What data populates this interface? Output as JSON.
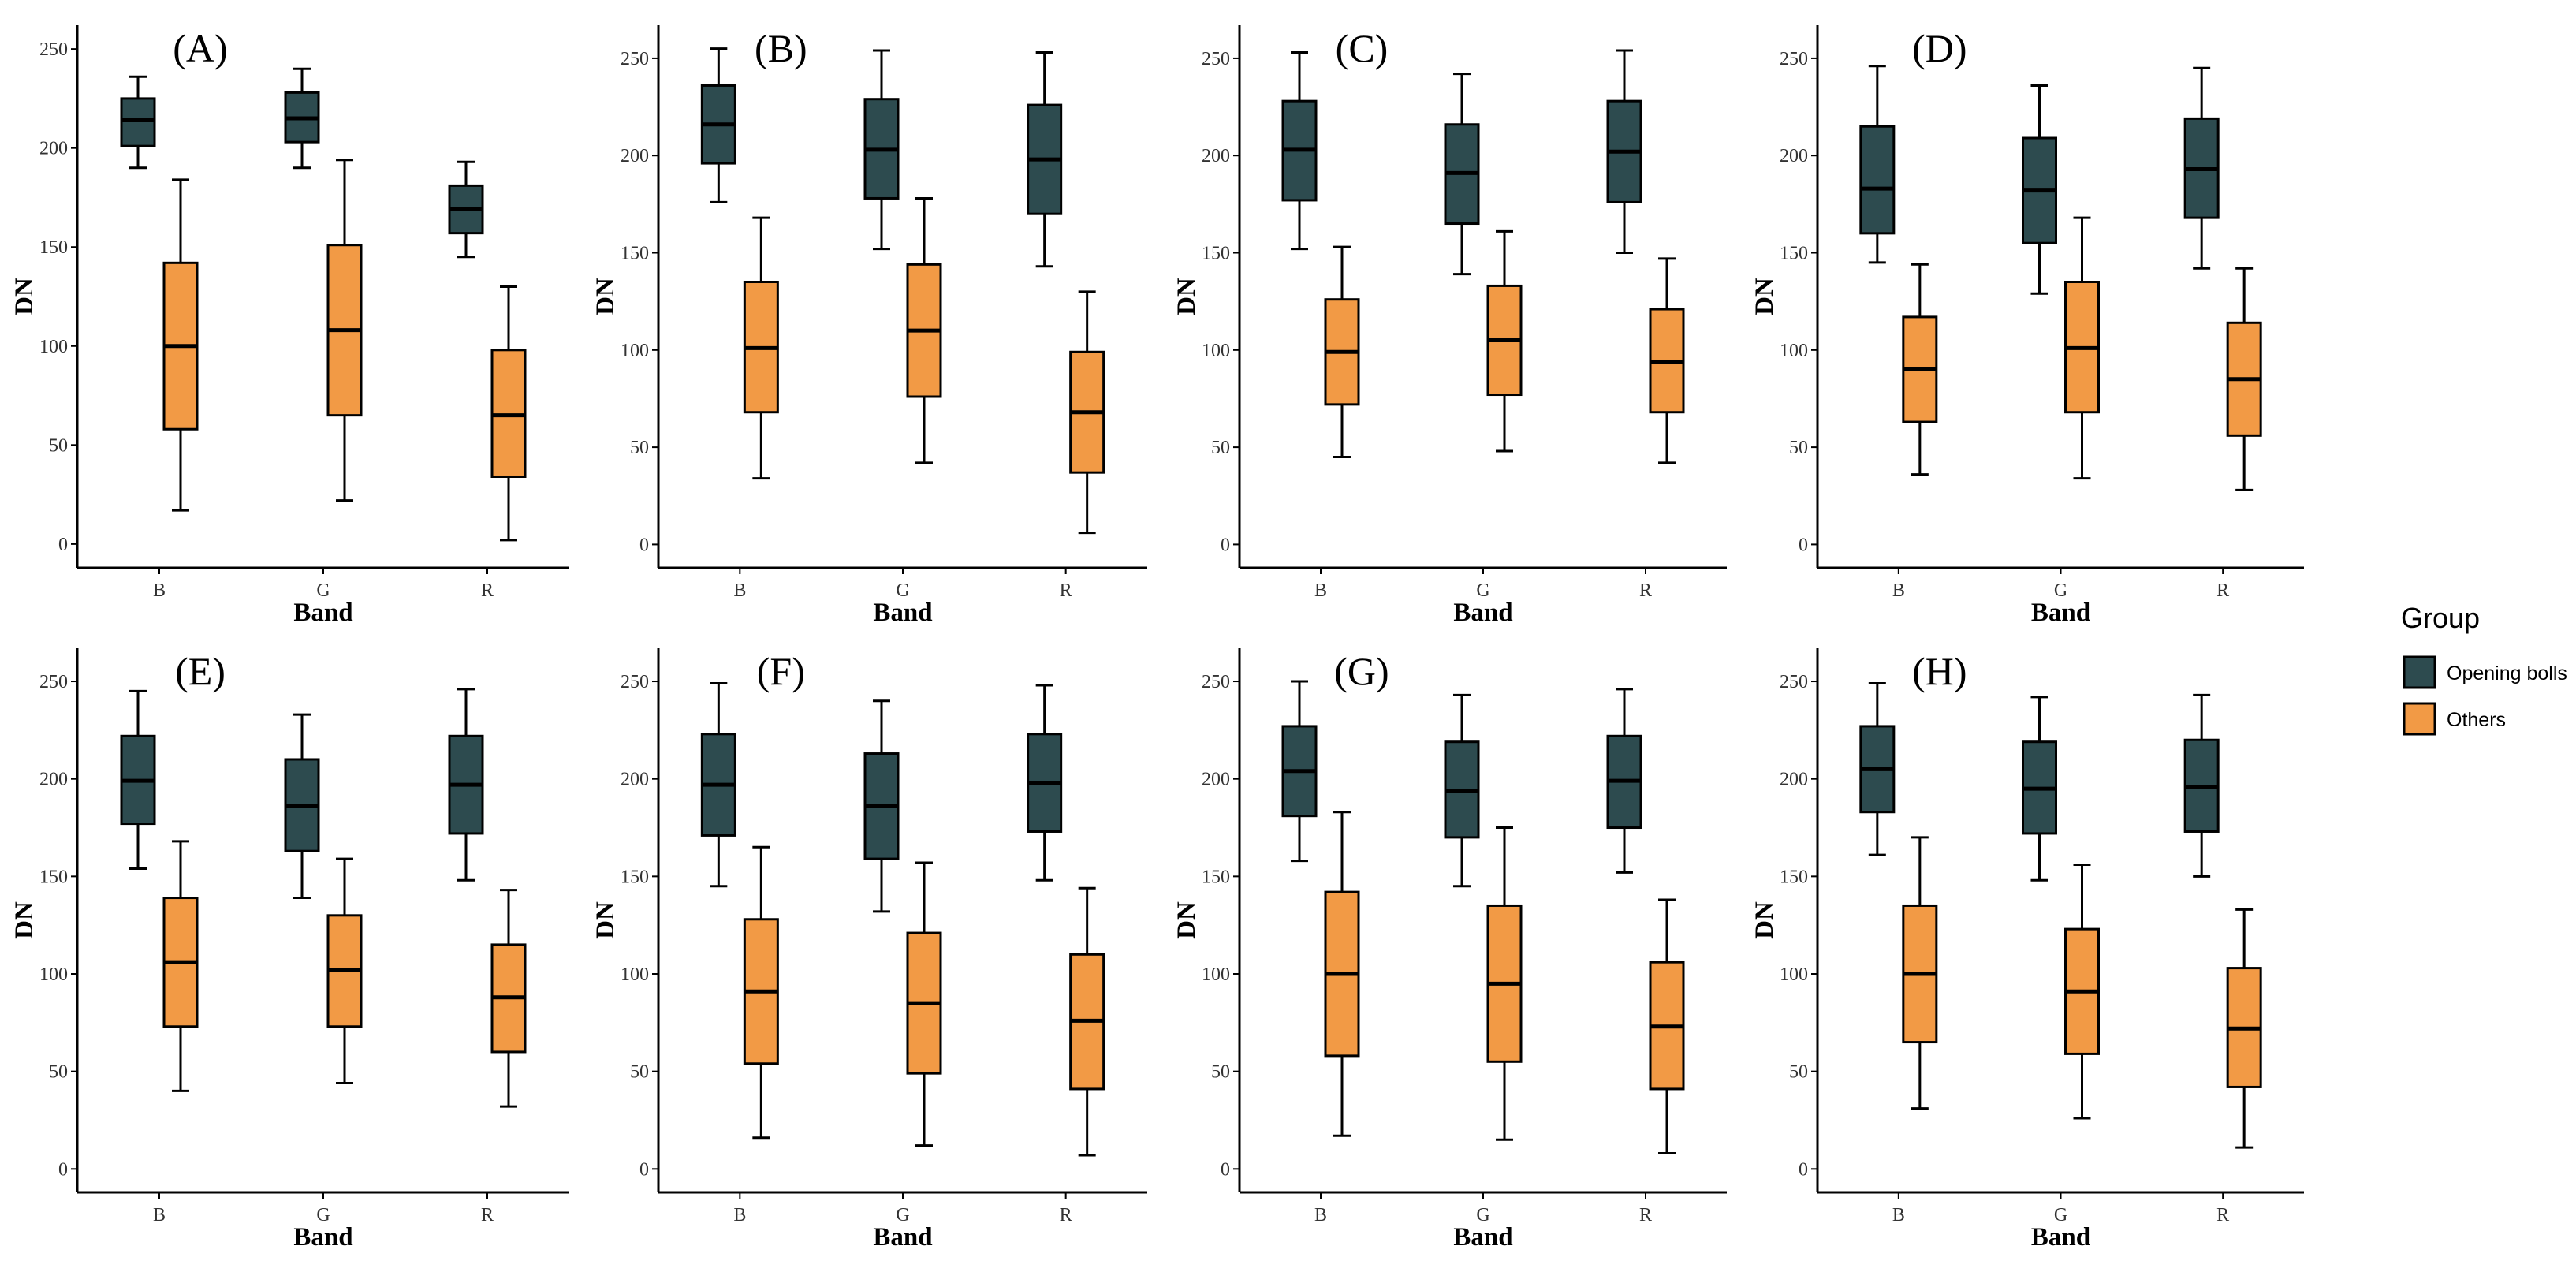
{
  "colors": {
    "opening_bolls": "#2d4b4f",
    "others": "#f29a45",
    "axis": "#000000",
    "tick_text": "#333333"
  },
  "legend": {
    "title": "Group",
    "items": [
      {
        "label": "Opening bolls",
        "color": "#2d4b4f"
      },
      {
        "label": "Others",
        "color": "#f29a45"
      }
    ]
  },
  "chart_data": [
    {
      "type": "boxplot",
      "title": "(A)",
      "xlabel": "Band",
      "ylabel": "DN",
      "categories": [
        "B",
        "G",
        "R"
      ],
      "ylim": [
        -12,
        262
      ],
      "yticks": [
        0,
        50,
        100,
        150,
        200,
        250
      ],
      "series": [
        {
          "name": "Opening bolls",
          "boxes": [
            {
              "min": 190,
              "q1": 201,
              "median": 214,
              "q3": 225,
              "max": 236
            },
            {
              "min": 190,
              "q1": 203,
              "median": 215,
              "q3": 228,
              "max": 240
            },
            {
              "min": 145,
              "q1": 157,
              "median": 169,
              "q3": 181,
              "max": 193
            }
          ]
        },
        {
          "name": "Others",
          "boxes": [
            {
              "min": 17,
              "q1": 58,
              "median": 100,
              "q3": 142,
              "max": 184
            },
            {
              "min": 22,
              "q1": 65,
              "median": 108,
              "q3": 151,
              "max": 194
            },
            {
              "min": 2,
              "q1": 34,
              "median": 65,
              "q3": 98,
              "max": 130
            }
          ]
        }
      ]
    },
    {
      "type": "boxplot",
      "title": "(B)",
      "xlabel": "Band",
      "ylabel": "DN",
      "categories": [
        "B",
        "G",
        "R"
      ],
      "ylim": [
        -12,
        267
      ],
      "yticks": [
        0,
        50,
        100,
        150,
        200,
        250
      ],
      "series": [
        {
          "name": "Opening bolls",
          "boxes": [
            {
              "min": 176,
              "q1": 196,
              "median": 216,
              "q3": 236,
              "max": 255
            },
            {
              "min": 152,
              "q1": 178,
              "median": 203,
              "q3": 229,
              "max": 254
            },
            {
              "min": 143,
              "q1": 170,
              "median": 198,
              "q3": 226,
              "max": 253
            }
          ]
        },
        {
          "name": "Others",
          "boxes": [
            {
              "min": 34,
              "q1": 68,
              "median": 101,
              "q3": 135,
              "max": 168
            },
            {
              "min": 42,
              "q1": 76,
              "median": 110,
              "q3": 144,
              "max": 178
            },
            {
              "min": 6,
              "q1": 37,
              "median": 68,
              "q3": 99,
              "max": 130
            }
          ]
        }
      ]
    },
    {
      "type": "boxplot",
      "title": "(C)",
      "xlabel": "Band",
      "ylabel": "DN",
      "categories": [
        "B",
        "G",
        "R"
      ],
      "ylim": [
        -12,
        267
      ],
      "yticks": [
        0,
        50,
        100,
        150,
        200,
        250
      ],
      "series": [
        {
          "name": "Opening bolls",
          "boxes": [
            {
              "min": 152,
              "q1": 177,
              "median": 203,
              "q3": 228,
              "max": 253
            },
            {
              "min": 139,
              "q1": 165,
              "median": 191,
              "q3": 216,
              "max": 242
            },
            {
              "min": 150,
              "q1": 176,
              "median": 202,
              "q3": 228,
              "max": 254
            }
          ]
        },
        {
          "name": "Others",
          "boxes": [
            {
              "min": 45,
              "q1": 72,
              "median": 99,
              "q3": 126,
              "max": 153
            },
            {
              "min": 48,
              "q1": 77,
              "median": 105,
              "q3": 133,
              "max": 161
            },
            {
              "min": 42,
              "q1": 68,
              "median": 94,
              "q3": 121,
              "max": 147
            }
          ]
        }
      ]
    },
    {
      "type": "boxplot",
      "title": "(D)",
      "xlabel": "Band",
      "ylabel": "DN",
      "categories": [
        "B",
        "G",
        "R"
      ],
      "ylim": [
        -12,
        267
      ],
      "yticks": [
        0,
        50,
        100,
        150,
        200,
        250
      ],
      "series": [
        {
          "name": "Opening bolls",
          "boxes": [
            {
              "min": 145,
              "q1": 160,
              "median": 183,
              "q3": 215,
              "max": 246
            },
            {
              "min": 129,
              "q1": 155,
              "median": 182,
              "q3": 209,
              "max": 236
            },
            {
              "min": 142,
              "q1": 168,
              "median": 193,
              "q3": 219,
              "max": 245
            }
          ]
        },
        {
          "name": "Others",
          "boxes": [
            {
              "min": 36,
              "q1": 63,
              "median": 90,
              "q3": 117,
              "max": 144
            },
            {
              "min": 34,
              "q1": 68,
              "median": 101,
              "q3": 135,
              "max": 168
            },
            {
              "min": 28,
              "q1": 56,
              "median": 85,
              "q3": 114,
              "max": 142
            }
          ]
        }
      ]
    },
    {
      "type": "boxplot",
      "title": "(E)",
      "xlabel": "Band",
      "ylabel": "DN",
      "categories": [
        "B",
        "G",
        "R"
      ],
      "ylim": [
        -12,
        267
      ],
      "yticks": [
        0,
        50,
        100,
        150,
        200,
        250
      ],
      "series": [
        {
          "name": "Opening bolls",
          "boxes": [
            {
              "min": 154,
              "q1": 177,
              "median": 199,
              "q3": 222,
              "max": 245
            },
            {
              "min": 139,
              "q1": 163,
              "median": 186,
              "q3": 210,
              "max": 233
            },
            {
              "min": 148,
              "q1": 172,
              "median": 197,
              "q3": 222,
              "max": 246
            }
          ]
        },
        {
          "name": "Others",
          "boxes": [
            {
              "min": 40,
              "q1": 73,
              "median": 106,
              "q3": 139,
              "max": 168
            },
            {
              "min": 44,
              "q1": 73,
              "median": 102,
              "q3": 130,
              "max": 159
            },
            {
              "min": 32,
              "q1": 60,
              "median": 88,
              "q3": 115,
              "max": 143
            }
          ]
        }
      ]
    },
    {
      "type": "boxplot",
      "title": "(F)",
      "xlabel": "Band",
      "ylabel": "DN",
      "categories": [
        "B",
        "G",
        "R"
      ],
      "ylim": [
        -12,
        267
      ],
      "yticks": [
        0,
        50,
        100,
        150,
        200,
        250
      ],
      "series": [
        {
          "name": "Opening bolls",
          "boxes": [
            {
              "min": 145,
              "q1": 171,
              "median": 197,
              "q3": 223,
              "max": 249
            },
            {
              "min": 132,
              "q1": 159,
              "median": 186,
              "q3": 213,
              "max": 240
            },
            {
              "min": 148,
              "q1": 173,
              "median": 198,
              "q3": 223,
              "max": 248
            }
          ]
        },
        {
          "name": "Others",
          "boxes": [
            {
              "min": 16,
              "q1": 54,
              "median": 91,
              "q3": 128,
              "max": 165
            },
            {
              "min": 12,
              "q1": 49,
              "median": 85,
              "q3": 121,
              "max": 157
            },
            {
              "min": 7,
              "q1": 41,
              "median": 76,
              "q3": 110,
              "max": 144
            }
          ]
        }
      ]
    },
    {
      "type": "boxplot",
      "title": "(G)",
      "xlabel": "Band",
      "ylabel": "DN",
      "categories": [
        "B",
        "G",
        "R"
      ],
      "ylim": [
        -12,
        267
      ],
      "yticks": [
        0,
        50,
        100,
        150,
        200,
        250
      ],
      "series": [
        {
          "name": "Opening bolls",
          "boxes": [
            {
              "min": 158,
              "q1": 181,
              "median": 204,
              "q3": 227,
              "max": 250
            },
            {
              "min": 145,
              "q1": 170,
              "median": 194,
              "q3": 219,
              "max": 243
            },
            {
              "min": 152,
              "q1": 175,
              "median": 199,
              "q3": 222,
              "max": 246
            }
          ]
        },
        {
          "name": "Others",
          "boxes": [
            {
              "min": 17,
              "q1": 58,
              "median": 100,
              "q3": 142,
              "max": 183
            },
            {
              "min": 15,
              "q1": 55,
              "median": 95,
              "q3": 135,
              "max": 175
            },
            {
              "min": 8,
              "q1": 41,
              "median": 73,
              "q3": 106,
              "max": 138
            }
          ]
        }
      ]
    },
    {
      "type": "boxplot",
      "title": "(H)",
      "xlabel": "Band",
      "ylabel": "DN",
      "categories": [
        "B",
        "G",
        "R"
      ],
      "ylim": [
        -12,
        267
      ],
      "yticks": [
        0,
        50,
        100,
        150,
        200,
        250
      ],
      "series": [
        {
          "name": "Opening bolls",
          "boxes": [
            {
              "min": 161,
              "q1": 183,
              "median": 205,
              "q3": 227,
              "max": 249
            },
            {
              "min": 148,
              "q1": 172,
              "median": 195,
              "q3": 219,
              "max": 242
            },
            {
              "min": 150,
              "q1": 173,
              "median": 196,
              "q3": 220,
              "max": 243
            }
          ]
        },
        {
          "name": "Others",
          "boxes": [
            {
              "min": 31,
              "q1": 65,
              "median": 100,
              "q3": 135,
              "max": 170
            },
            {
              "min": 26,
              "q1": 59,
              "median": 91,
              "q3": 123,
              "max": 156
            },
            {
              "min": 11,
              "q1": 42,
              "median": 72,
              "q3": 103,
              "max": 133
            }
          ]
        }
      ]
    }
  ]
}
